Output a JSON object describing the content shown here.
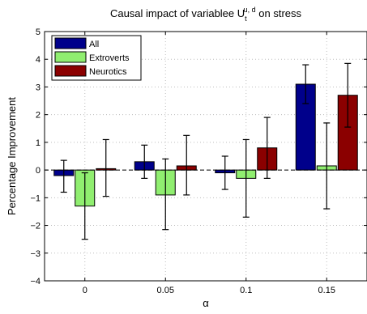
{
  "chart_data": {
    "type": "bar",
    "title": {
      "prefix": "Causal impact of variablee U",
      "sup": "u, d",
      "sub": "t",
      "suffix": " on stress"
    },
    "xlabel": "α",
    "ylabel": "Percentage Improvement",
    "categories": [
      "0",
      "0.05",
      "0.1",
      "0.15"
    ],
    "ylim": [
      -4,
      5
    ],
    "yticks": [
      "−4",
      "−3",
      "−2",
      "−1",
      "0",
      "1",
      "2",
      "3",
      "4",
      "5"
    ],
    "grid": true,
    "legend_position": "top-left",
    "series": [
      {
        "name": "All",
        "color": "#00008b",
        "values": [
          -0.2,
          0.3,
          -0.1,
          3.1
        ],
        "err_low": [
          -0.8,
          -0.3,
          -0.7,
          2.4
        ],
        "err_high": [
          0.35,
          0.9,
          0.5,
          3.8
        ]
      },
      {
        "name": "Extroverts",
        "color": "#90ee70",
        "values": [
          -1.3,
          -0.9,
          -0.3,
          0.15
        ],
        "err_low": [
          -2.5,
          -2.15,
          -1.7,
          -1.4
        ],
        "err_high": [
          -0.1,
          0.4,
          1.1,
          1.7
        ]
      },
      {
        "name": "Neurotics",
        "color": "#8b0000",
        "values": [
          0.05,
          0.15,
          0.8,
          2.7
        ],
        "err_low": [
          -0.95,
          -0.9,
          -0.3,
          1.55
        ],
        "err_high": [
          1.1,
          1.25,
          1.9,
          3.85
        ]
      }
    ]
  }
}
